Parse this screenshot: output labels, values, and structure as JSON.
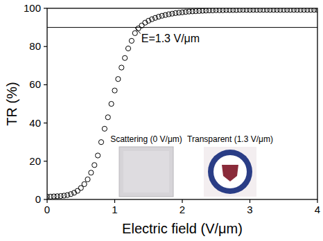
{
  "chart_data": {
    "type": "scatter",
    "x_label": "Electric field (V/μm)",
    "y_label": "TR (%)",
    "x": [
      0,
      0.05,
      0.1,
      0.15,
      0.2,
      0.25,
      0.3,
      0.35,
      0.4,
      0.45,
      0.5,
      0.55,
      0.6,
      0.65,
      0.7,
      0.75,
      0.8,
      0.85,
      0.9,
      0.95,
      1.0,
      1.05,
      1.1,
      1.15,
      1.2,
      1.25,
      1.3,
      1.35,
      1.4,
      1.45,
      1.5,
      1.55,
      1.6,
      1.65,
      1.7,
      1.75,
      1.8,
      1.85,
      1.9,
      1.95,
      2.0,
      2.05,
      2.1,
      2.15,
      2.2,
      2.25,
      2.3,
      2.35,
      2.4,
      2.45,
      2.5,
      2.55,
      2.6,
      2.65,
      2.7,
      2.75,
      2.8,
      2.85,
      2.9,
      2.95,
      3.0,
      3.05,
      3.1,
      3.15,
      3.2,
      3.25,
      3.3,
      3.35,
      3.4,
      3.45,
      3.5,
      3.55,
      3.6,
      3.65,
      3.7,
      3.75,
      3.8,
      3.85,
      3.9,
      3.95,
      4.0
    ],
    "values": [
      1.5,
      1.5,
      1.6,
      1.7,
      1.8,
      2.0,
      2.3,
      2.8,
      3.5,
      4.5,
      6,
      8,
      10.5,
      14,
      18,
      23,
      30,
      37,
      43,
      50,
      57,
      63,
      69,
      74,
      79,
      83,
      87,
      89.5,
      91,
      92.5,
      93.5,
      94.3,
      95,
      95.6,
      96.1,
      96.5,
      96.9,
      97.2,
      97.5,
      97.7,
      97.9,
      98.1,
      98.3,
      98.4,
      98.5,
      98.6,
      98.7,
      98.8,
      98.9,
      98.9,
      99.0,
      99.0,
      99.0,
      99.1,
      99.1,
      99.1,
      99.1,
      99.2,
      99.2,
      99.2,
      99.2,
      99.2,
      99.2,
      99.2,
      99.2,
      99.2,
      99.2,
      99.2,
      99.2,
      99.2,
      99.2,
      99.2,
      99.2,
      99.2,
      99.2,
      99.2,
      99.2,
      99.2,
      99.2,
      99.2,
      99.2
    ],
    "color": "#000000",
    "marker": "open-circle",
    "xlim": [
      0,
      4
    ],
    "ylim": [
      0,
      100
    ],
    "xticks": [
      0,
      1,
      2,
      3,
      4
    ],
    "yticks": [
      0,
      20,
      40,
      60,
      80,
      100
    ],
    "grid": false,
    "hline": 90,
    "annotations": [
      {
        "text": "E=1.3 V/μm",
        "x": 1.3,
        "y": 90
      }
    ],
    "insets": [
      {
        "label": "Scattering (0 V/μm)"
      },
      {
        "label": "Transparent (1.3 V/μm)"
      }
    ]
  }
}
